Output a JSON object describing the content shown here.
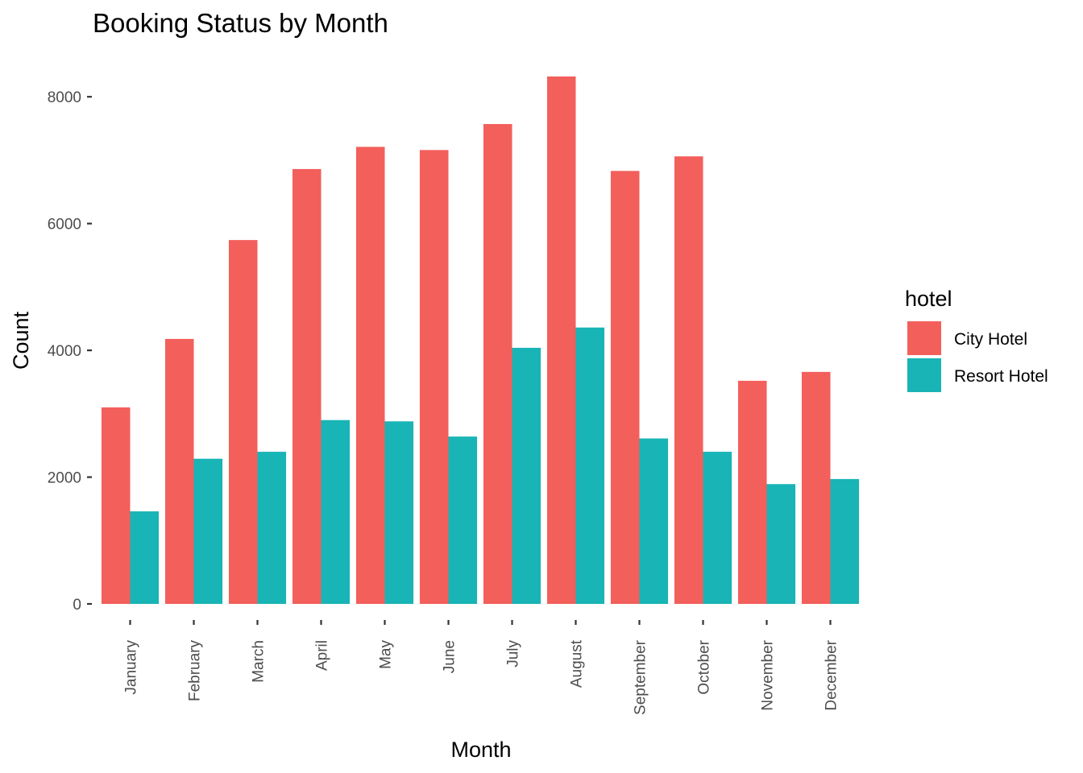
{
  "chart_data": {
    "type": "bar",
    "title": "Booking Status by Month",
    "xlabel": "Month",
    "ylabel": "Count",
    "categories": [
      "January",
      "February",
      "March",
      "April",
      "May",
      "June",
      "July",
      "August",
      "September",
      "October",
      "November",
      "December"
    ],
    "series": [
      {
        "name": "City Hotel",
        "color": "#F35F5B",
        "values": [
          3100,
          4180,
          5740,
          6860,
          7210,
          7160,
          7570,
          8320,
          6830,
          7060,
          3520,
          3660
        ]
      },
      {
        "name": "Resort Hotel",
        "color": "#19B4B6",
        "values": [
          1460,
          2290,
          2400,
          2900,
          2880,
          2640,
          4040,
          4360,
          2610,
          2400,
          1890,
          1970
        ]
      }
    ],
    "ylim": [
      0,
      8320
    ],
    "yticks": [
      0,
      2000,
      4000,
      6000,
      8000
    ],
    "grid": false,
    "legend": {
      "title": "hotel",
      "position": "right"
    }
  }
}
